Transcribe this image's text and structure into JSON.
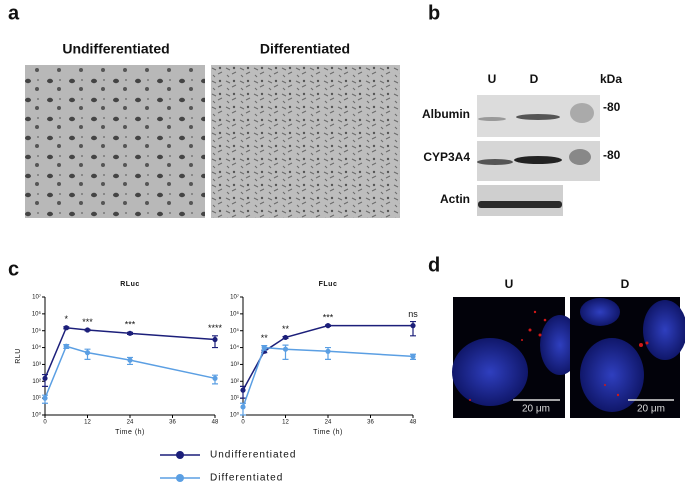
{
  "panels": {
    "a": "a",
    "b": "b",
    "c": "c",
    "d": "d"
  },
  "panel_a": {
    "left_label": "Undifferentiated",
    "right_label": "Differentiated"
  },
  "panel_b": {
    "lanes": [
      "U",
      "D"
    ],
    "unit": "kDa",
    "rows": [
      "Albumin",
      "CYP3A4",
      "Actin"
    ],
    "markers": [
      "-80",
      "-80"
    ]
  },
  "panel_d": {
    "left_label": "U",
    "right_label": "D",
    "scale_bar": "20 μm"
  },
  "chart_data": [
    {
      "type": "line",
      "title": "RLuc",
      "ylabel": "RLU",
      "xlabel": "Time (h)",
      "log_y": true,
      "x": [
        0,
        6,
        12,
        24,
        48
      ],
      "xlim": [
        0,
        48
      ],
      "xticks": [
        0,
        12,
        24,
        36,
        48
      ],
      "ylim": [
        1,
        10000000
      ],
      "yticks": [
        {
          "value": 1,
          "label": "10⁰"
        },
        {
          "value": 10,
          "label": "10¹"
        },
        {
          "value": 100,
          "label": "10²"
        },
        {
          "value": 1000,
          "label": "10³"
        },
        {
          "value": 10000,
          "label": "10⁴"
        },
        {
          "value": 100000,
          "label": "10⁵"
        },
        {
          "value": 1000000,
          "label": "10⁶"
        },
        {
          "value": 10000000,
          "label": "10⁷"
        }
      ],
      "series": [
        {
          "name": "Undifferentiated",
          "color": "#1c1f7a",
          "values": [
            150,
            150000,
            110000,
            70000,
            30000
          ],
          "errors": [
            100,
            20000,
            10000,
            10000,
            20000
          ]
        },
        {
          "name": "Differentiated",
          "color": "#5b9fe3",
          "values": [
            10,
            12000,
            5000,
            1800,
            150
          ],
          "errors": [
            5,
            3000,
            3000,
            800,
            80
          ]
        }
      ],
      "annotations": [
        {
          "x": 6,
          "text": "*"
        },
        {
          "x": 12,
          "text": "***"
        },
        {
          "x": 24,
          "text": "***"
        },
        {
          "x": 48,
          "text": "****"
        }
      ]
    },
    {
      "type": "line",
      "title": "FLuc",
      "xlabel": "Time (h)",
      "log_y": true,
      "x": [
        0,
        6,
        12,
        24,
        48
      ],
      "xlim": [
        0,
        48
      ],
      "xticks": [
        0,
        12,
        24,
        36,
        48
      ],
      "ylim": [
        1,
        10000000
      ],
      "yticks": [
        {
          "value": 1,
          "label": "10⁰"
        },
        {
          "value": 10,
          "label": "10¹"
        },
        {
          "value": 100,
          "label": "10²"
        },
        {
          "value": 1000,
          "label": "10³"
        },
        {
          "value": 10000,
          "label": "10⁴"
        },
        {
          "value": 100000,
          "label": "10⁵"
        },
        {
          "value": 1000000,
          "label": "10⁶"
        },
        {
          "value": 10000000,
          "label": "10⁷"
        }
      ],
      "series": [
        {
          "color": "#1c1f7a",
          "values": [
            30,
            6000,
            40000,
            200000,
            200000
          ],
          "errors": [
            20,
            1000,
            5000,
            20000,
            150000
          ]
        },
        {
          "color": "#5b9fe3",
          "values": [
            3,
            10000,
            8000,
            6000,
            3000
          ],
          "errors": [
            2,
            3000,
            6000,
            4000,
            1000
          ]
        }
      ],
      "annotations": [
        {
          "x": 6,
          "text": "**"
        },
        {
          "x": 12,
          "text": "**"
        },
        {
          "x": 24,
          "text": "***"
        },
        {
          "x": 48,
          "text": "ns"
        }
      ]
    }
  ]
}
